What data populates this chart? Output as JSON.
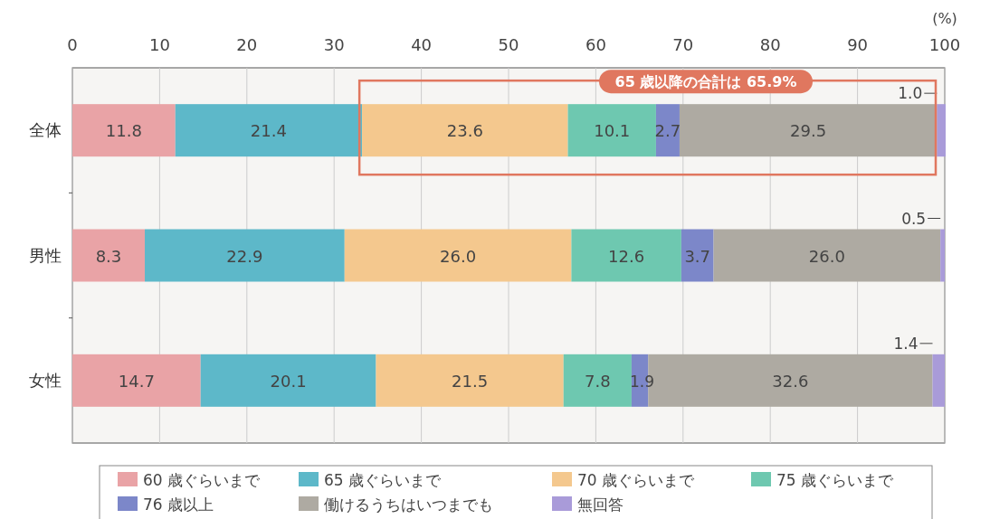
{
  "chart_data": {
    "type": "bar",
    "orientation": "horizontal",
    "stacked": true,
    "categories": [
      "全体",
      "男性",
      "女性"
    ],
    "series": [
      {
        "name": "60 歳ぐらいまで",
        "color": "#e9a3a6",
        "values": [
          11.8,
          8.3,
          14.7
        ],
        "value_labels": [
          "11.8",
          "8.3",
          "14.7"
        ]
      },
      {
        "name": "65 歳ぐらいまで",
        "color": "#5db8c9",
        "values": [
          21.4,
          22.9,
          20.1
        ],
        "value_labels": [
          "21.4",
          "22.9",
          "20.1"
        ]
      },
      {
        "name": "70 歳ぐらいまで",
        "color": "#f4c88e",
        "values": [
          23.6,
          26.0,
          21.5
        ],
        "value_labels": [
          "23.6",
          "26.0",
          "21.5"
        ]
      },
      {
        "name": "75 歳ぐらいまで",
        "color": "#6ec8b0",
        "values": [
          10.1,
          12.6,
          7.8
        ],
        "value_labels": [
          "10.1",
          "12.6",
          "7.8"
        ]
      },
      {
        "name": "76 歳以上",
        "color": "#7c87c9",
        "values": [
          2.7,
          3.7,
          1.9
        ],
        "value_labels": [
          "2.7",
          "3.7",
          "1.9"
        ]
      },
      {
        "name": "働けるうちはいつまでも",
        "color": "#aeaaa2",
        "values": [
          29.5,
          26.0,
          32.6
        ],
        "value_labels": [
          "29.5",
          "26.0",
          "32.6"
        ]
      },
      {
        "name": "無回答",
        "color": "#a99bd9",
        "values": [
          1.0,
          0.5,
          1.4
        ],
        "value_labels": [
          "1.0",
          "0.5",
          "1.4"
        ]
      }
    ],
    "xlim": [
      0,
      100
    ],
    "xticks": [
      0,
      10,
      20,
      30,
      40,
      50,
      60,
      70,
      80,
      90,
      100
    ],
    "xlabel": "(%)",
    "grid": "x",
    "legend": "bottom",
    "annotations": [
      "65 歳以降の合計は 65.9%"
    ]
  }
}
